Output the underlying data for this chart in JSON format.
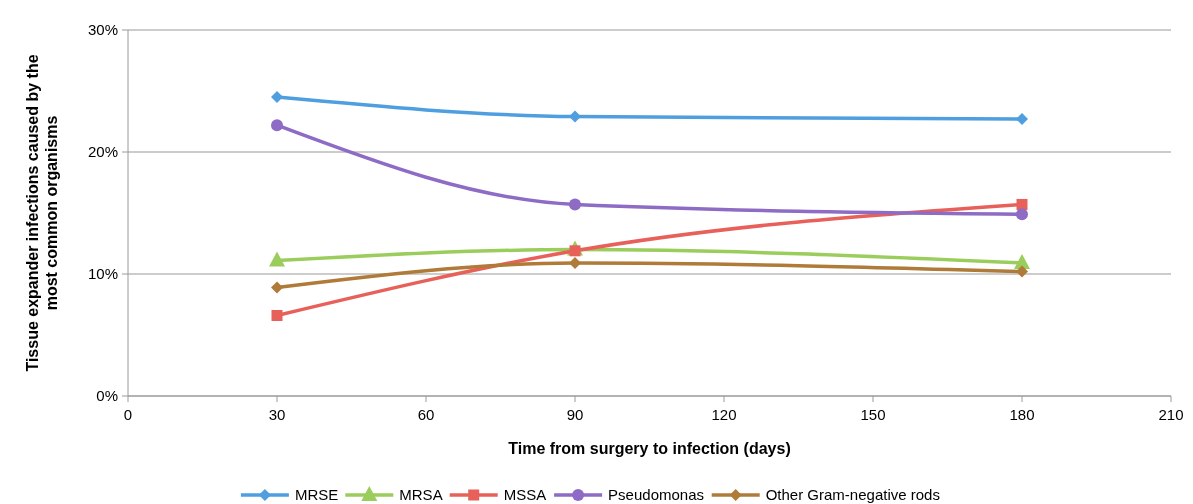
{
  "chart_data": {
    "type": "line",
    "xlabel": "Time from surgery to infection (days)",
    "ylabel": "Tissue expander infections caused by the most common organisms",
    "x": [
      30,
      90,
      180
    ],
    "xlim": [
      0,
      210
    ],
    "xticks": [
      0,
      30,
      60,
      90,
      120,
      150,
      180,
      210
    ],
    "ylim": [
      0,
      30
    ],
    "yticks": [
      {
        "value": 0,
        "label": "0%"
      },
      {
        "value": 10,
        "label": "10%"
      },
      {
        "value": 20,
        "label": "20%"
      },
      {
        "value": 30,
        "label": "30%"
      }
    ],
    "grid": "y",
    "legend": "bottom",
    "series": [
      {
        "name": "MRSE",
        "color": "#4f9ee0",
        "marker": "diamond",
        "values": [
          24.5,
          22.9,
          22.7
        ]
      },
      {
        "name": "MRSA",
        "color": "#9acd5c",
        "marker": "triangle",
        "values": [
          11.1,
          12.0,
          10.9
        ]
      },
      {
        "name": "MSSA",
        "color": "#e8605a",
        "marker": "square",
        "values": [
          6.6,
          11.9,
          15.7
        ]
      },
      {
        "name": "Pseudomonas",
        "color": "#8e6bc4",
        "marker": "circle",
        "values": [
          22.2,
          15.7,
          14.9
        ]
      },
      {
        "name": "Other Gram-negative rods",
        "color": "#b07a38",
        "marker": "diamond",
        "values": [
          8.9,
          10.9,
          10.2
        ]
      }
    ]
  }
}
